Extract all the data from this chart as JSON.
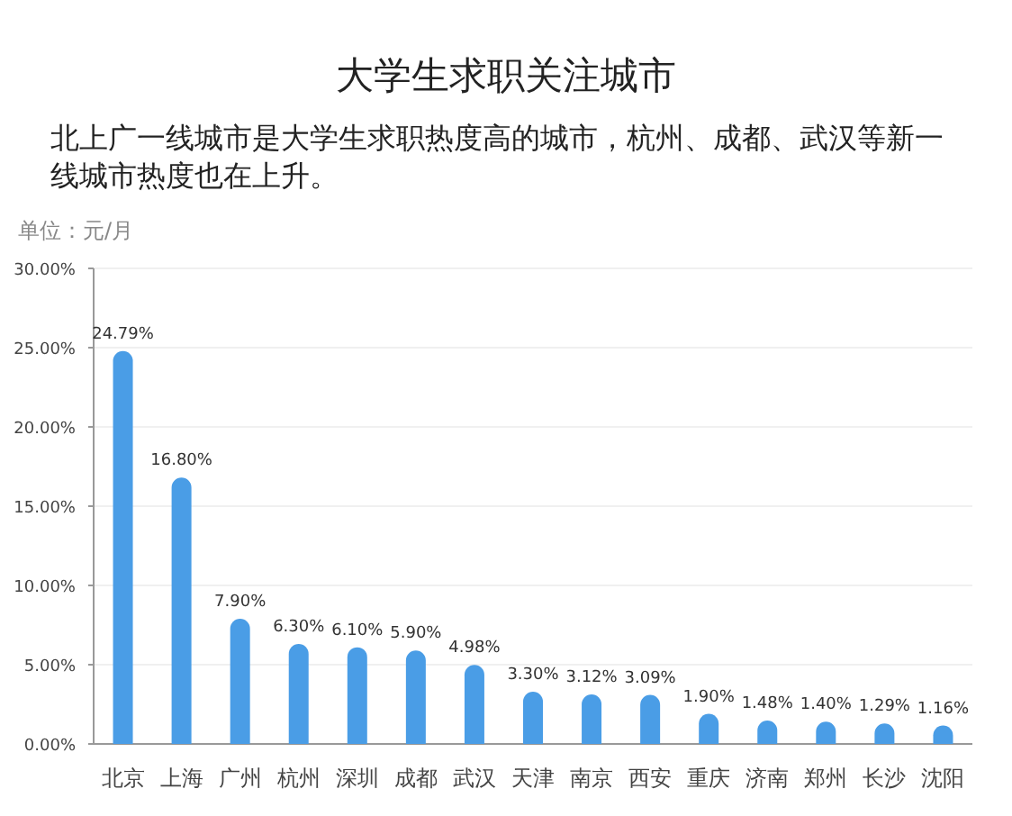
{
  "chart_data": {
    "type": "bar",
    "title": "大学生求职关注城市",
    "subtitle": "北上广一线城市是大学生求职热度高的城市，杭州、成都、武汉等新一线城市热度也在上升。",
    "ylabel": "单位：元/月",
    "categories": [
      "北京",
      "上海",
      "广州",
      "杭州",
      "深圳",
      "成都",
      "武汉",
      "天津",
      "南京",
      "西安",
      "重庆",
      "济南",
      "郑州",
      "长沙",
      "沈阳"
    ],
    "values": [
      24.79,
      16.8,
      7.9,
      6.3,
      6.1,
      5.9,
      4.98,
      3.3,
      3.12,
      3.09,
      1.9,
      1.48,
      1.4,
      1.29,
      1.16
    ],
    "value_labels": [
      "24.79%",
      "16.80%",
      "7.90%",
      "6.30%",
      "6.10%",
      "5.90%",
      "4.98%",
      "3.30%",
      "3.12%",
      "3.09%",
      "1.90%",
      "1.48%",
      "1.40%",
      "1.29%",
      "1.16%"
    ],
    "color": "#4a9de6",
    "ylim": [
      0,
      30
    ],
    "yticks": [
      {
        "value": 0,
        "label": "0.00%"
      },
      {
        "value": 5,
        "label": "5.00%"
      },
      {
        "value": 10,
        "label": "10.00%"
      },
      {
        "value": 15,
        "label": "15.00%"
      },
      {
        "value": 20,
        "label": "20.00%"
      },
      {
        "value": 25,
        "label": "25.00%"
      },
      {
        "value": 30,
        "label": "30.00%"
      }
    ],
    "grid": "y"
  }
}
